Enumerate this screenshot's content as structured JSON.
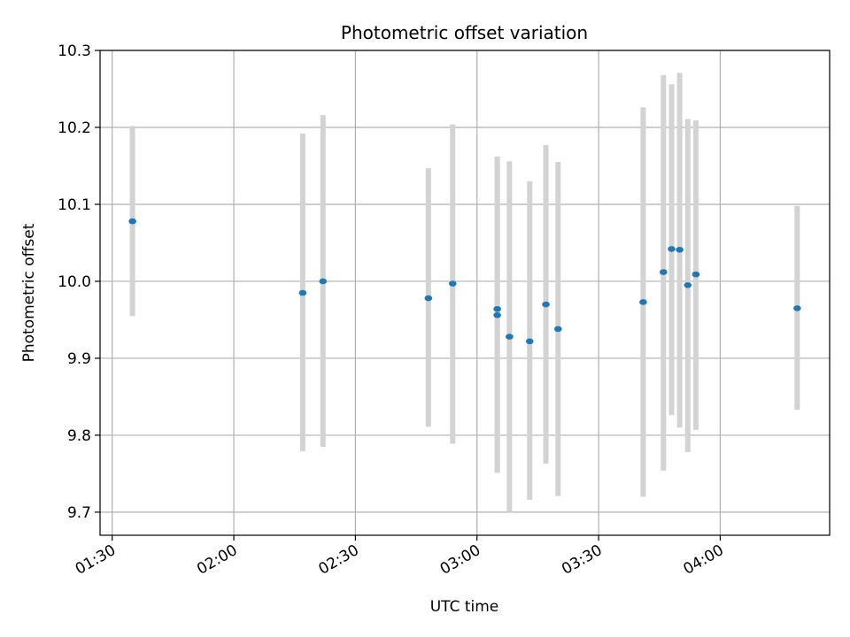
{
  "chart_data": {
    "type": "scatter",
    "title": "Photometric offset variation",
    "xlabel": "UTC time",
    "ylabel": "Photometric offset",
    "x_ticks": [
      "01:30",
      "02:00",
      "02:30",
      "03:00",
      "03:30",
      "04:00"
    ],
    "y_ticks": [
      "9.7",
      "9.8",
      "9.9",
      "10.0",
      "10.1",
      "10.2",
      "10.3"
    ],
    "xlim": [
      "01:27",
      "04:27"
    ],
    "ylim": [
      9.67,
      10.3
    ],
    "grid": true,
    "errorbar_color": "#d3d3d3",
    "marker_color": "#1f77b4",
    "points": [
      {
        "x": "01:35",
        "y": 10.078,
        "ylow": 9.955,
        "yhigh": 10.202
      },
      {
        "x": "02:17",
        "y": 9.985,
        "ylow": 9.779,
        "yhigh": 10.192
      },
      {
        "x": "02:22",
        "y": 10.0,
        "ylow": 9.785,
        "yhigh": 10.216
      },
      {
        "x": "02:48",
        "y": 9.978,
        "ylow": 9.811,
        "yhigh": 10.147
      },
      {
        "x": "02:54",
        "y": 9.997,
        "ylow": 9.789,
        "yhigh": 10.204
      },
      {
        "x": "03:05",
        "y": 9.956,
        "ylow": 9.751,
        "yhigh": 10.162
      },
      {
        "x": "03:05",
        "y": 9.964,
        "ylow": 9.751,
        "yhigh": 10.162
      },
      {
        "x": "03:08",
        "y": 9.928,
        "ylow": 9.7,
        "yhigh": 10.156
      },
      {
        "x": "03:13",
        "y": 9.922,
        "ylow": 9.716,
        "yhigh": 10.13
      },
      {
        "x": "03:17",
        "y": 9.97,
        "ylow": 9.763,
        "yhigh": 10.177
      },
      {
        "x": "03:20",
        "y": 9.938,
        "ylow": 9.721,
        "yhigh": 10.155
      },
      {
        "x": "03:41",
        "y": 9.973,
        "ylow": 9.72,
        "yhigh": 10.226
      },
      {
        "x": "03:46",
        "y": 10.012,
        "ylow": 9.754,
        "yhigh": 10.268
      },
      {
        "x": "03:48",
        "y": 10.042,
        "ylow": 9.826,
        "yhigh": 10.256
      },
      {
        "x": "03:50",
        "y": 10.041,
        "ylow": 9.81,
        "yhigh": 10.271
      },
      {
        "x": "03:52",
        "y": 9.995,
        "ylow": 9.778,
        "yhigh": 10.211
      },
      {
        "x": "03:54",
        "y": 10.009,
        "ylow": 9.807,
        "yhigh": 10.209
      },
      {
        "x": "04:19",
        "y": 9.965,
        "ylow": 9.833,
        "yhigh": 10.098
      }
    ]
  }
}
